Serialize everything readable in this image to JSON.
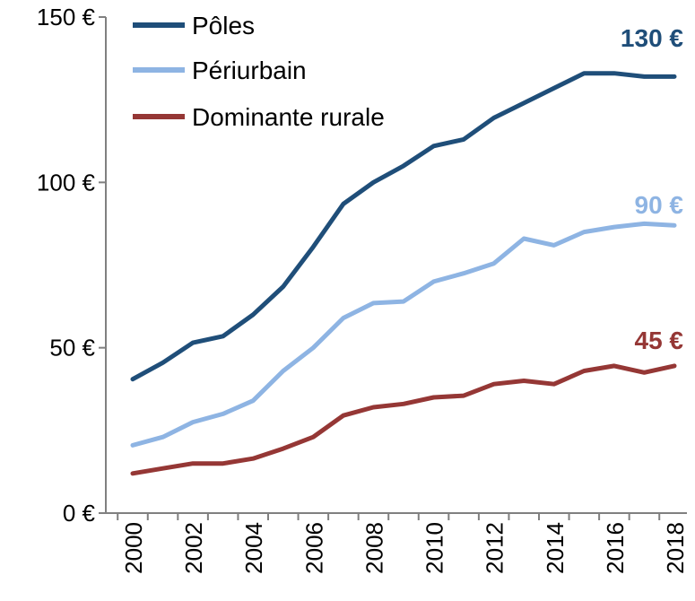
{
  "chart_data": {
    "type": "line",
    "title": "",
    "xlabel": "",
    "ylabel": "",
    "x": [
      2000,
      2001,
      2002,
      2003,
      2004,
      2005,
      2006,
      2007,
      2008,
      2009,
      2010,
      2011,
      2012,
      2013,
      2014,
      2015,
      2016,
      2017,
      2018
    ],
    "x_tick_labels": [
      "2000",
      "2002",
      "2004",
      "2006",
      "2008",
      "2010",
      "2012",
      "2014",
      "2016",
      "2018"
    ],
    "ylim": [
      0,
      150
    ],
    "y_tick_labels": [
      {
        "value": 0,
        "label": "0 €"
      },
      {
        "value": 50,
        "label": "50 €"
      },
      {
        "value": 100,
        "label": "100 €"
      },
      {
        "value": 150,
        "label": "150 €"
      }
    ],
    "grid": false,
    "legend_position": "top-left",
    "series": [
      {
        "name": "Pôles",
        "color": "#1f4e79",
        "values": [
          40.5,
          45.5,
          51.5,
          53.5,
          60,
          68.5,
          80.5,
          93.5,
          100,
          105,
          111,
          113,
          119.5,
          124,
          128.5,
          133,
          133,
          132,
          132
        ],
        "end_label": "130 €"
      },
      {
        "name": "Périurbain",
        "color": "#8eb4e3",
        "values": [
          20.5,
          23,
          27.5,
          30,
          34,
          43,
          50,
          59,
          63.5,
          64,
          70,
          72.5,
          75.5,
          83,
          81,
          85,
          86.5,
          87.5,
          87
        ],
        "end_label": "90 €"
      },
      {
        "name": "Dominante rurale",
        "color": "#953735",
        "values": [
          12,
          13.5,
          15,
          15,
          16.5,
          19.5,
          23,
          29.5,
          32,
          33,
          35,
          35.5,
          39,
          40,
          39,
          43,
          44.5,
          42.5,
          44.5
        ],
        "end_label": "45 €"
      }
    ]
  }
}
